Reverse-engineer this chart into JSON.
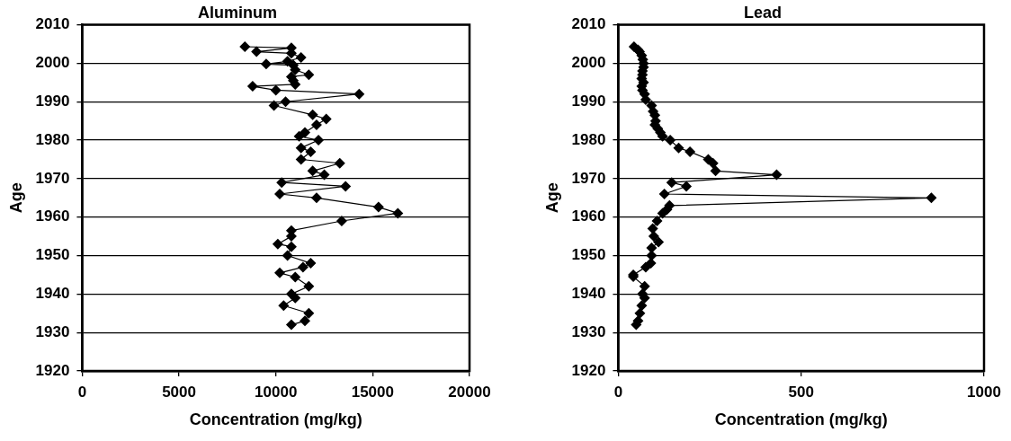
{
  "chart_data": [
    {
      "type": "line",
      "title": "Aluminum",
      "xlabel": "Concentration (mg/kg)",
      "ylabel": "Age",
      "marker": "diamond",
      "grid": "y",
      "xlim": [
        0,
        20000
      ],
      "xticks": [
        0,
        5000,
        10000,
        15000,
        20000
      ],
      "ylim": [
        1920,
        2010
      ],
      "yticks": [
        1920,
        1930,
        1940,
        1950,
        1960,
        1970,
        1980,
        1990,
        2000,
        2010
      ],
      "series": [
        {
          "color": "#000000",
          "x": [
            8400,
            10800,
            9000,
            10800,
            11300,
            10600,
            9500,
            10900,
            11000,
            11700,
            10800,
            10900,
            11000,
            8800,
            10000,
            14300,
            10500,
            9900,
            11900,
            12600,
            12100,
            11500,
            11200,
            12200,
            11300,
            11800,
            11300,
            13300,
            11900,
            12500,
            10300,
            13600,
            10200,
            12100,
            15300,
            16300,
            13400,
            10800,
            10800,
            10100,
            10800,
            10600,
            11800,
            11400,
            10200,
            11000,
            11700,
            10800,
            11000,
            10400,
            11700,
            11500,
            10800
          ],
          "values": [
            2004.3,
            2004,
            2003,
            2002.6,
            2001.5,
            2000.5,
            1999.8,
            1999.5,
            1998.3,
            1997,
            1996.5,
            1995.5,
            1994.5,
            1994,
            1993,
            1992,
            1990,
            1989,
            1986.6,
            1985.5,
            1984,
            1982,
            1981,
            1980,
            1978,
            1977,
            1975,
            1974,
            1972,
            1971,
            1969,
            1968,
            1966,
            1965,
            1962.6,
            1961,
            1959,
            1956.5,
            1955,
            1953,
            1952.3,
            1950,
            1948,
            1947,
            1945.5,
            1944.4,
            1942,
            1940,
            1939,
            1937,
            1935,
            1933,
            1932
          ]
        }
      ]
    },
    {
      "type": "line",
      "title": "Lead",
      "xlabel": "Concentration (mg/kg)",
      "ylabel": "Age",
      "marker": "diamond",
      "grid": "y",
      "xlim": [
        0,
        1000
      ],
      "xticks": [
        0,
        500,
        1000
      ],
      "ylim": [
        1920,
        2010
      ],
      "yticks": [
        1920,
        1930,
        1940,
        1950,
        1960,
        1970,
        1980,
        1990,
        2000,
        2010
      ],
      "series": [
        {
          "color": "#000000",
          "x": [
            43,
            54,
            58,
            64,
            67,
            69,
            69,
            66,
            66,
            64,
            69,
            64,
            66,
            72,
            75,
            91,
            95,
            100,
            102,
            100,
            108,
            115,
            121,
            142,
            165,
            196,
            246,
            259,
            266,
            433,
            146,
            186,
            126,
            856,
            140,
            133,
            121,
            106,
            94,
            97,
            110,
            91,
            91,
            89,
            75,
            41,
            41,
            72,
            66,
            72,
            64,
            59,
            54,
            49
          ],
          "values": [
            2004.3,
            2003.5,
            2003,
            2002,
            2001,
            2000,
            1999,
            1998,
            1997,
            1996,
            1995,
            1994,
            1993,
            1992,
            1990.5,
            1989,
            1987.5,
            1986.5,
            1985,
            1984,
            1983,
            1982,
            1981,
            1980,
            1978,
            1977,
            1975,
            1974,
            1972,
            1971,
            1969,
            1968,
            1966,
            1965,
            1963,
            1962,
            1961,
            1959,
            1957,
            1955,
            1953.5,
            1952,
            1950,
            1948,
            1947,
            1945,
            1944.5,
            1942,
            1940,
            1939,
            1937,
            1935,
            1933,
            1932
          ]
        }
      ]
    }
  ]
}
